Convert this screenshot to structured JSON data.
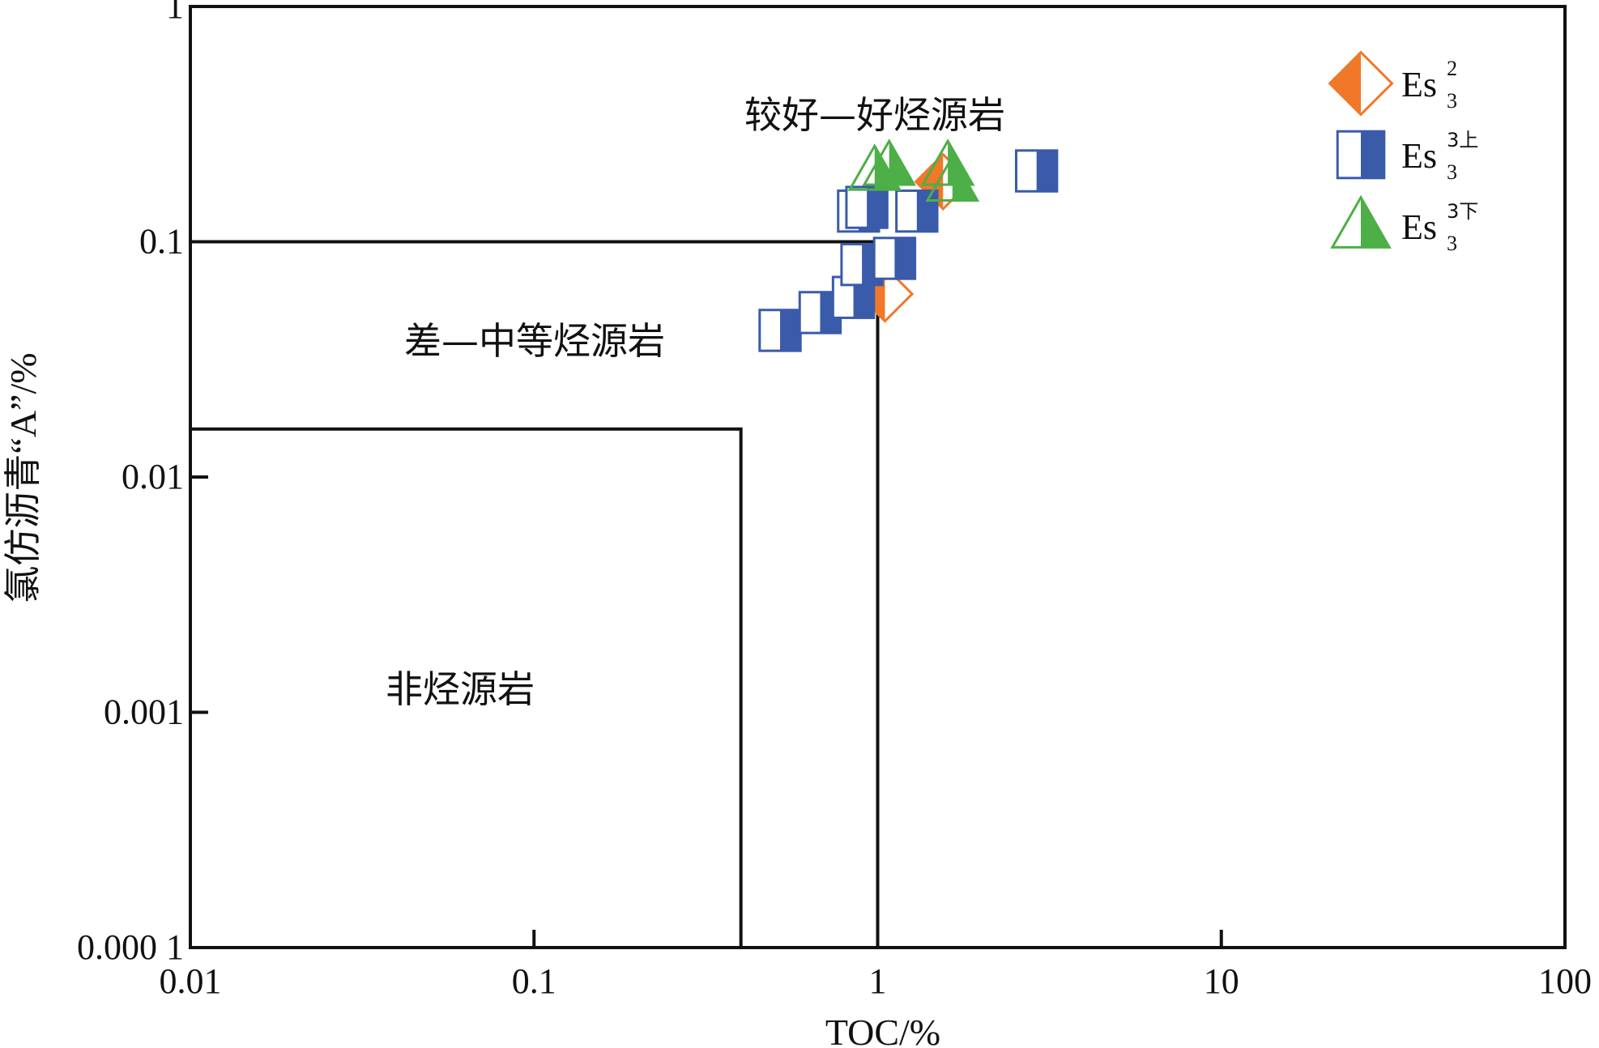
{
  "chart_data": {
    "type": "scatter",
    "x_scale": "log",
    "y_scale": "log",
    "xlim": [
      0.01,
      100
    ],
    "ylim": [
      0.0001,
      1
    ],
    "xlabel": "TOC/%",
    "ylabel": "氯仿沥青“A”/%",
    "x_ticks": [
      {
        "value": 0.01,
        "label": "0.01"
      },
      {
        "value": 0.1,
        "label": "0.1"
      },
      {
        "value": 1,
        "label": "1"
      },
      {
        "value": 10,
        "label": "10"
      },
      {
        "value": 100,
        "label": "100"
      }
    ],
    "y_ticks": [
      {
        "value": 0.0001,
        "label": "0.000 1"
      },
      {
        "value": 0.001,
        "label": "0.001"
      },
      {
        "value": 0.01,
        "label": "0.01"
      },
      {
        "value": 0.1,
        "label": "0.1"
      },
      {
        "value": 1,
        "label": "1"
      }
    ],
    "regions": [
      {
        "label": "较好—好烃源岩",
        "label_at": [
          0.3,
          0.3
        ]
      },
      {
        "label": "差—中等烃源岩",
        "x_max": 1,
        "y_max": 0.1,
        "label_at": [
          0.1,
          0.033
        ]
      },
      {
        "label": "非烃源岩",
        "x_max": 0.4,
        "y_max": 0.016,
        "label_at": [
          0.06,
          0.0012
        ]
      }
    ],
    "series": [
      {
        "name": "Es32",
        "legend_base": "Es",
        "legend_sup": "2",
        "legend_sub": "3",
        "marker": "diamond",
        "color": "#f07828",
        "points": [
          [
            1.05,
            0.06
          ],
          [
            1.55,
            0.18
          ]
        ]
      },
      {
        "name": "Es33上",
        "legend_base": "Es",
        "legend_sup": "3上",
        "legend_sub": "3",
        "marker": "square",
        "color": "#3a5baa",
        "points": [
          [
            0.52,
            0.042
          ],
          [
            0.68,
            0.05
          ],
          [
            0.85,
            0.058
          ],
          [
            0.9,
            0.08
          ],
          [
            0.88,
            0.135
          ],
          [
            0.93,
            0.14
          ],
          [
            1.3,
            0.135
          ],
          [
            1.12,
            0.085
          ],
          [
            2.9,
            0.2
          ]
        ]
      },
      {
        "name": "Es33下",
        "legend_base": "Es",
        "legend_sup": "3下",
        "legend_sub": "3",
        "marker": "triangle",
        "color": "#4caf47",
        "points": [
          [
            0.98,
            0.2
          ],
          [
            1.08,
            0.21
          ],
          [
            1.6,
            0.21
          ],
          [
            1.65,
            0.18
          ]
        ]
      }
    ],
    "legend_position": "top-right",
    "grid": false
  }
}
